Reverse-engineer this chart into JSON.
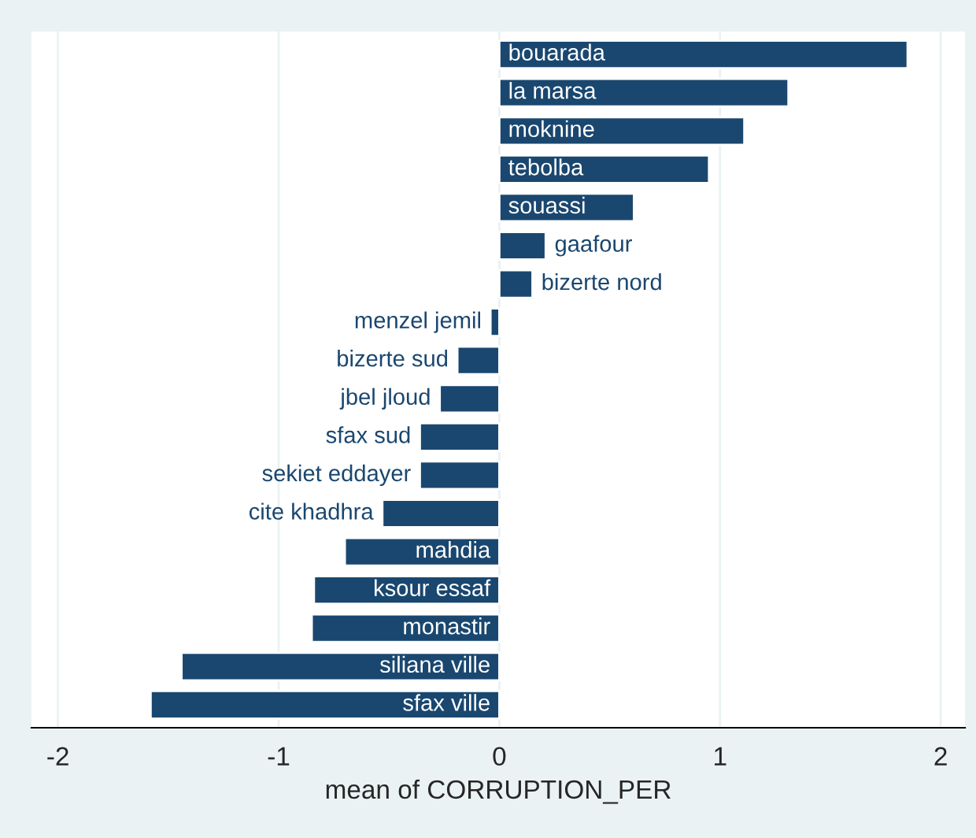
{
  "chart_data": {
    "type": "bar",
    "orientation": "horizontal",
    "xlabel": "mean of CORRUPTION_PER",
    "categories": [
      "bouarada",
      "la marsa",
      "moknine",
      "tebolba",
      "souassi",
      "gaafour",
      "bizerte nord",
      "menzel jemil",
      "bizerte sud",
      "jbel jloud",
      "sfax sud",
      "sekiet eddayer",
      "cite khadhra",
      "mahdia",
      "ksour essaf",
      "monastir",
      "siliana ville",
      "sfax ville"
    ],
    "values": [
      1.85,
      1.31,
      1.11,
      0.95,
      0.61,
      0.21,
      0.15,
      -0.04,
      -0.19,
      -0.27,
      -0.36,
      -0.36,
      -0.53,
      -0.7,
      -0.84,
      -0.85,
      -1.44,
      -1.58
    ],
    "color": "#1a476f",
    "xlim": [
      -2.12,
      2.11
    ],
    "xticks": [
      -2,
      -1,
      0,
      1,
      2
    ],
    "grid": "x",
    "tick_labels": "x"
  }
}
